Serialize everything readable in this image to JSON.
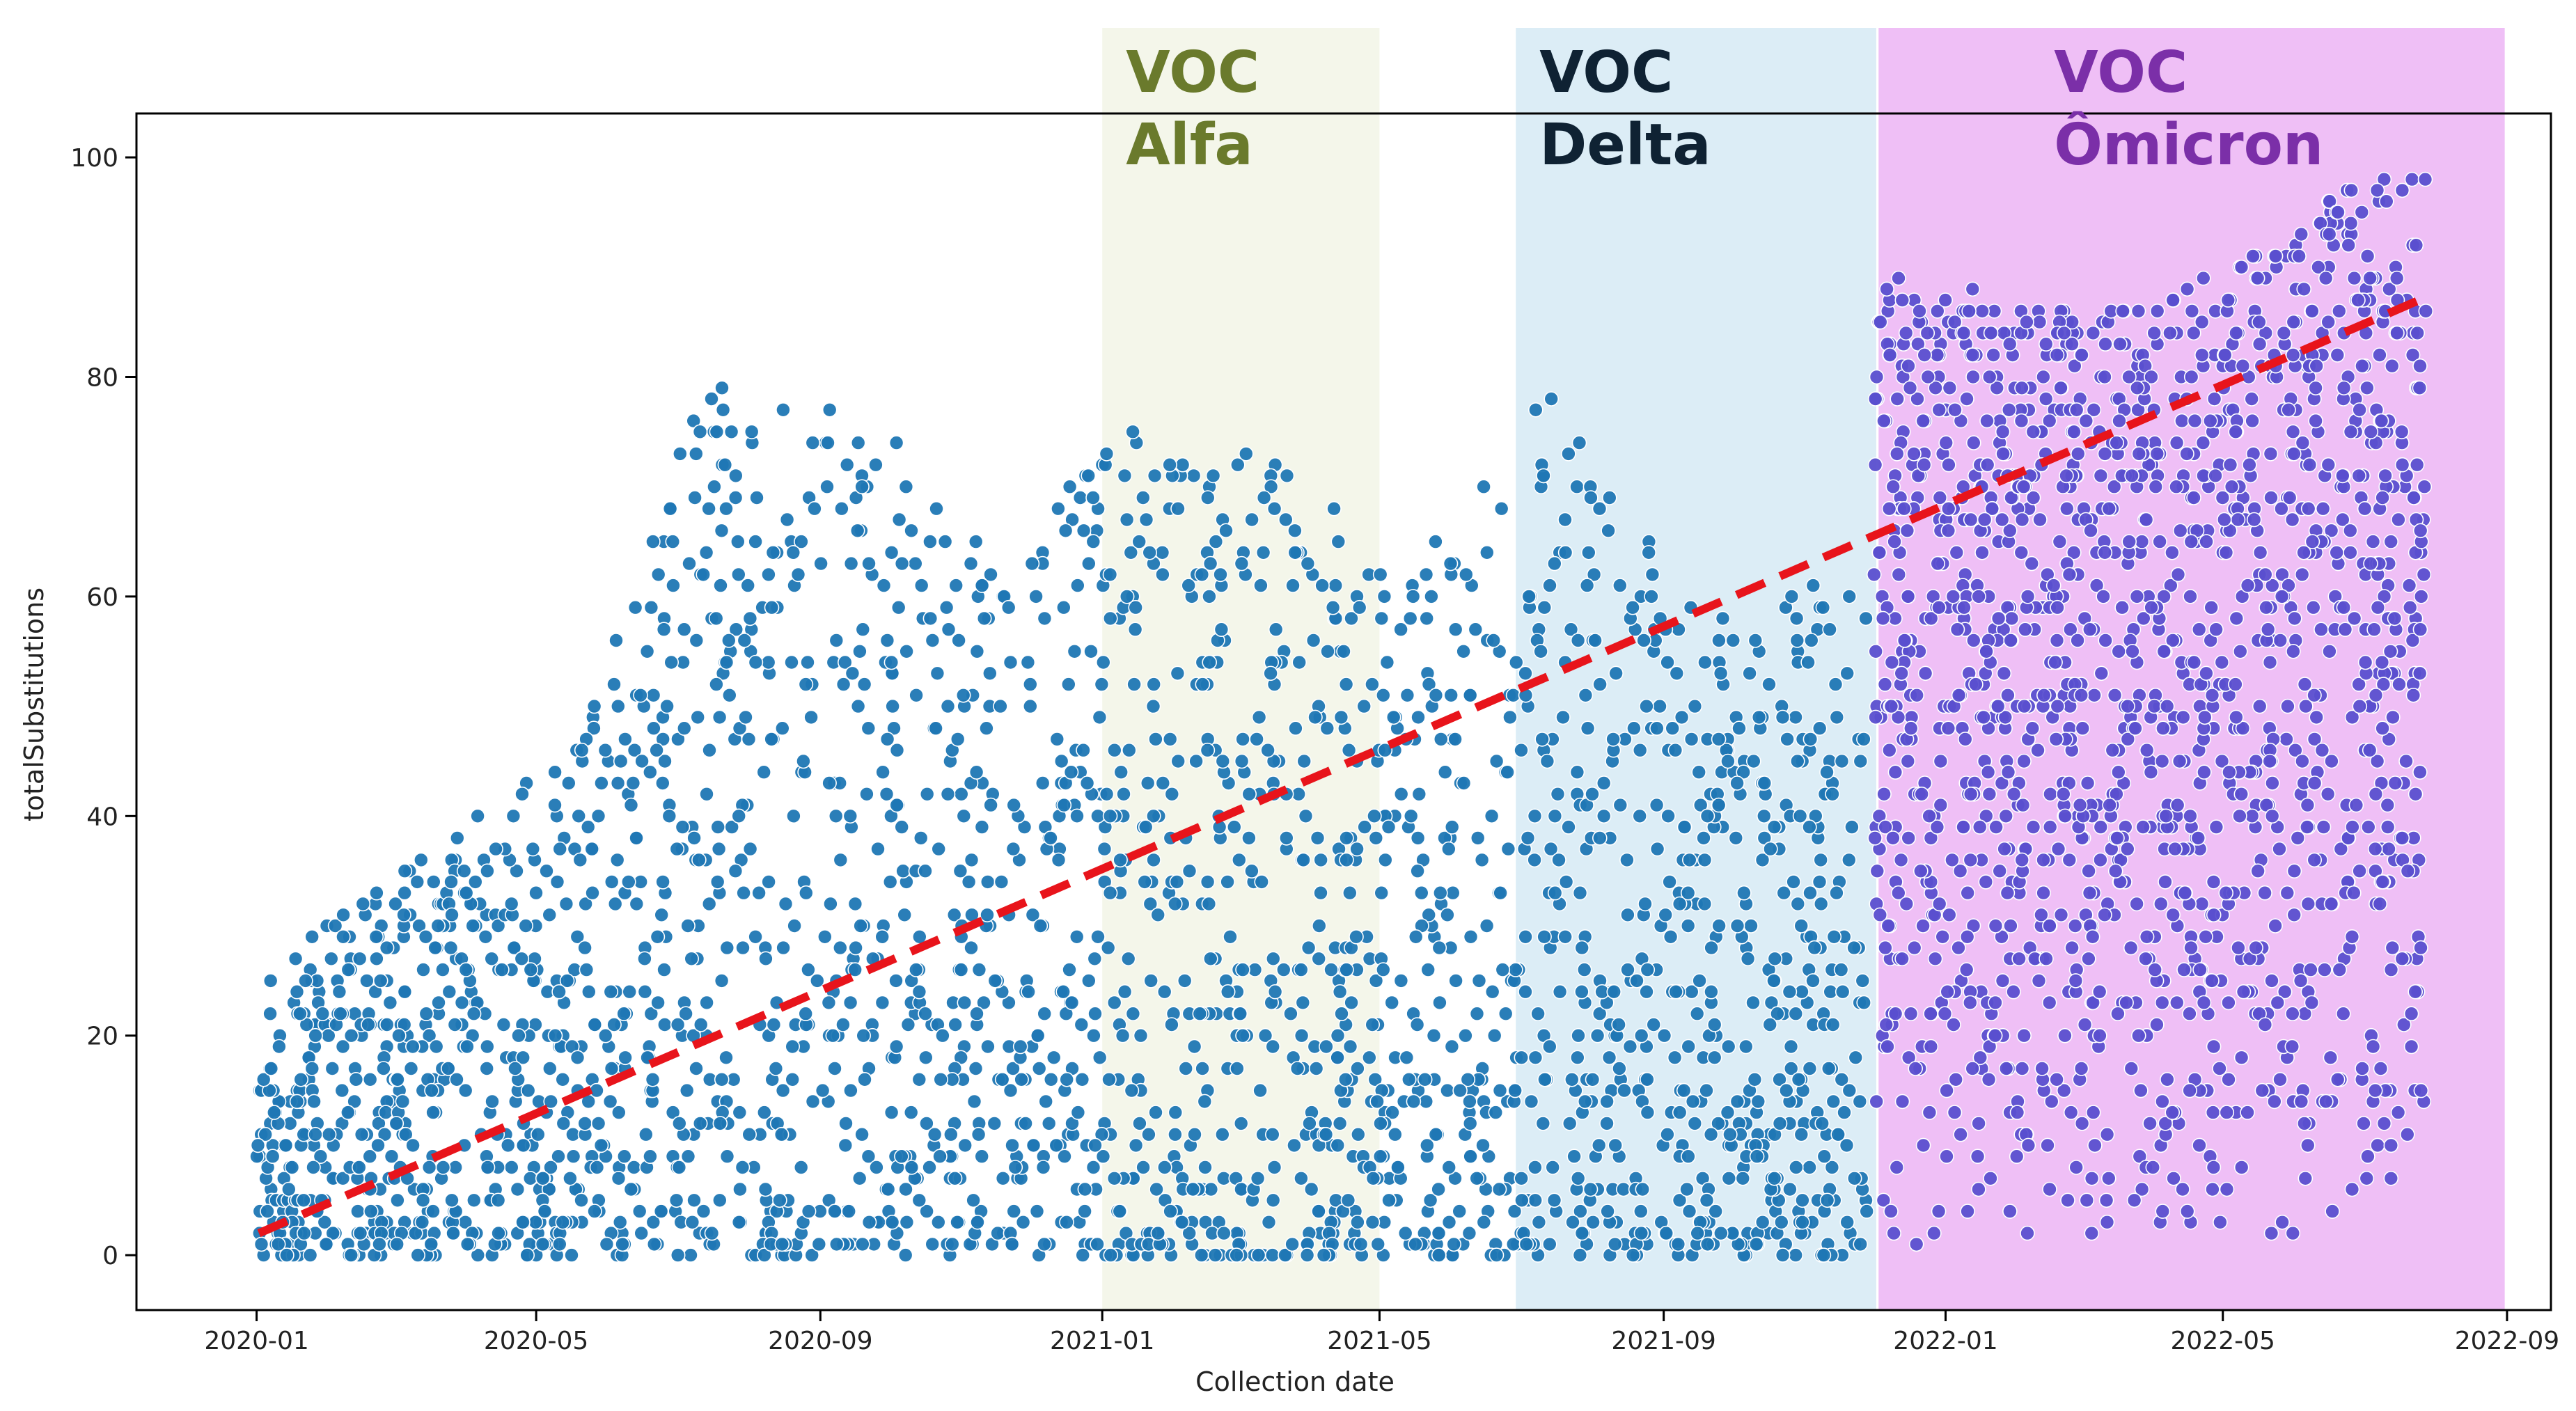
{
  "chart_data": {
    "type": "scatter",
    "title": "",
    "xlabel": "Collection date",
    "ylabel": "totalSubstitutions",
    "x_tick_labels": [
      "2020-01",
      "2020-05",
      "2020-09",
      "2021-01",
      "2021-05",
      "2021-09",
      "2022-01",
      "2022-05",
      "2022-09"
    ],
    "y_tick_labels": [
      "0",
      "20",
      "40",
      "60",
      "80",
      "100"
    ],
    "xlim": [
      "2019-11-10",
      "2022-09-20"
    ],
    "ylim": [
      -5,
      104
    ],
    "grid": false,
    "regions": [
      {
        "label_line1": "VOC",
        "label_line2": "Alfa",
        "start": "2021-01-01",
        "end": "2021-05-01",
        "fill": "#f4f6ea",
        "text_color": "#6a7a2c"
      },
      {
        "label_line1": "VOC",
        "label_line2": "Delta",
        "start": "2021-06-29",
        "end": "2021-12-02",
        "fill": "#dcedf6",
        "text_color": "#0f2233"
      },
      {
        "label_line1": "VOC",
        "label_line2": "Ômicron",
        "start": "2021-12-03",
        "end": "2022-08-31",
        "fill": "#efbff6",
        "text_color": "#7b2fa8"
      }
    ],
    "trend_line": {
      "x": [
        "2020-01-02",
        "2022-07-25"
      ],
      "y": [
        2,
        87
      ],
      "color": "#e8141b",
      "style": "dashed"
    },
    "series": [
      {
        "color": "#1f77b4",
        "summary": [
          {
            "x": "2020-01",
            "y_min": 0,
            "y_max": 27
          },
          {
            "x": "2020-03",
            "y_min": 0,
            "y_max": 38
          },
          {
            "x": "2020-05",
            "y_min": 0,
            "y_max": 45
          },
          {
            "x": "2020-07",
            "y_min": 0,
            "y_max": 81
          },
          {
            "x": "2020-09",
            "y_min": 0,
            "y_max": 78
          },
          {
            "x": "2020-11",
            "y_min": 0,
            "y_max": 64
          },
          {
            "x": "2021-01",
            "y_min": 0,
            "y_max": 75
          },
          {
            "x": "2021-03",
            "y_min": 0,
            "y_max": 73
          },
          {
            "x": "2021-05",
            "y_min": 0,
            "y_max": 62
          },
          {
            "x": "2021-07",
            "y_min": 0,
            "y_max": 79
          },
          {
            "x": "2021-09",
            "y_min": 0,
            "y_max": 58
          },
          {
            "x": "2021-11",
            "y_min": 0,
            "y_max": 63
          }
        ]
      },
      {
        "color": "#5a4fcf",
        "summary": [
          {
            "x": "2021-12",
            "y_min": 0,
            "y_max": 89
          },
          {
            "x": "2022-02",
            "y_min": 0,
            "y_max": 86
          },
          {
            "x": "2022-04",
            "y_min": 0,
            "y_max": 88
          },
          {
            "x": "2022-06",
            "y_min": 0,
            "y_max": 96
          },
          {
            "x": "2022-07",
            "y_min": 3,
            "y_max": 99
          }
        ]
      }
    ]
  }
}
